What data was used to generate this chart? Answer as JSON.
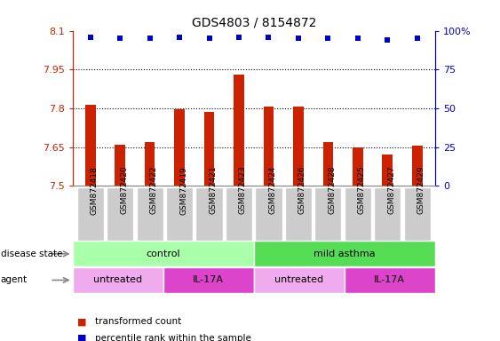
{
  "title": "GDS4803 / 8154872",
  "samples": [
    "GSM872418",
    "GSM872420",
    "GSM872422",
    "GSM872419",
    "GSM872421",
    "GSM872423",
    "GSM872424",
    "GSM872426",
    "GSM872428",
    "GSM872425",
    "GSM872427",
    "GSM872429"
  ],
  "bar_values": [
    7.815,
    7.66,
    7.67,
    7.795,
    7.785,
    7.93,
    7.805,
    7.805,
    7.67,
    7.65,
    7.62,
    7.655
  ],
  "percentile_values": [
    96,
    95,
    95,
    96,
    95,
    96,
    96,
    95,
    95,
    95,
    94,
    95
  ],
  "y_min": 7.5,
  "y_max": 8.1,
  "y_ticks_left": [
    7.5,
    7.65,
    7.8,
    7.95,
    8.1
  ],
  "y_ticks_left_labels": [
    "7.5",
    "7.65",
    "7.8",
    "7.95",
    "8.1"
  ],
  "y_right_pct": [
    0,
    25,
    50,
    75,
    100
  ],
  "y_right_labels": [
    "0",
    "25",
    "50",
    "75",
    "100%"
  ],
  "dotted_lines": [
    7.65,
    7.8,
    7.95
  ],
  "bar_color": "#cc2200",
  "dot_color": "#0000cc",
  "disease_state_groups": [
    {
      "label": "control",
      "start": 0,
      "end": 6,
      "color": "#aaffaa"
    },
    {
      "label": "mild asthma",
      "start": 6,
      "end": 12,
      "color": "#55dd55"
    }
  ],
  "agent_groups": [
    {
      "label": "untreated",
      "start": 0,
      "end": 3,
      "color": "#f0aaee"
    },
    {
      "label": "IL-17A",
      "start": 3,
      "end": 6,
      "color": "#dd44cc"
    },
    {
      "label": "untreated",
      "start": 6,
      "end": 9,
      "color": "#f0aaee"
    },
    {
      "label": "IL-17A",
      "start": 9,
      "end": 12,
      "color": "#dd44cc"
    }
  ],
  "disease_state_label": "disease state",
  "agent_label": "agent",
  "left_color": "#cc2200",
  "right_color": "#0000cc",
  "tick_label_bg": "#cccccc",
  "bar_width": 0.35
}
